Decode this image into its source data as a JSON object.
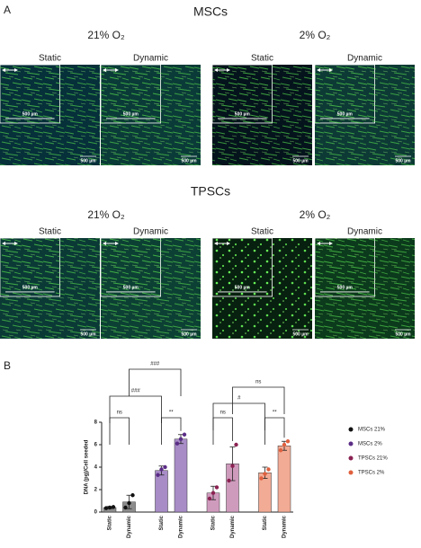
{
  "panel_a": {
    "label": "A",
    "scale_bar": "500 µm",
    "groups": [
      {
        "title": "MSCs",
        "conditions": [
          {
            "title": "21% O₂",
            "images": [
              "Static",
              "Dynamic"
            ]
          },
          {
            "title": "2% O₂",
            "images": [
              "Static",
              "Dynamic"
            ]
          }
        ]
      },
      {
        "title": "TPSCs",
        "conditions": [
          {
            "title": "21% O₂",
            "images": [
              "Static",
              "Dynamic"
            ]
          },
          {
            "title": "2% O₂",
            "images": [
              "Static",
              "Dynamic"
            ]
          }
        ]
      }
    ]
  },
  "panel_b": {
    "label": "B"
  },
  "chart_data": {
    "type": "bar",
    "ylabel": "DNA (pg)/Cell seeded",
    "categories": [
      "Static",
      "Dynamic"
    ],
    "series": [
      {
        "name": "MSCs 21%",
        "color": "#111111",
        "bar_color": "#8c8c8c",
        "values": [
          0.4,
          0.9
        ],
        "errors": [
          0.1,
          0.6
        ],
        "points": [
          [
            0.35,
            0.4,
            0.45
          ],
          [
            0.4,
            0.8,
            1.5
          ]
        ]
      },
      {
        "name": "MSCs 2%",
        "color": "#5b2d86",
        "bar_color": "#a78cc6",
        "values": [
          3.7,
          6.5
        ],
        "errors": [
          0.4,
          0.4
        ],
        "points": [
          [
            3.3,
            3.8,
            4.0
          ],
          [
            6.1,
            6.5,
            6.9
          ]
        ]
      },
      {
        "name": "TPSCs 21%",
        "color": "#8b2252",
        "bar_color": "#cf9bbd",
        "values": [
          1.7,
          4.3
        ],
        "errors": [
          0.6,
          1.5
        ],
        "points": [
          [
            1.2,
            1.7,
            2.2
          ],
          [
            2.8,
            4.1,
            6.0
          ]
        ]
      },
      {
        "name": "TPSCs 2%",
        "color": "#e0603e",
        "bar_color": "#f2ab95",
        "values": [
          3.5,
          5.9
        ],
        "errors": [
          0.5,
          0.4
        ],
        "points": [
          [
            3.0,
            3.4,
            3.8
          ],
          [
            5.5,
            6.0,
            6.3
          ]
        ]
      }
    ],
    "comparisons": [
      {
        "from": 0,
        "to": 1,
        "label": "ns"
      },
      {
        "from": 2,
        "to": 3,
        "label": "**"
      },
      {
        "from": 0,
        "to": 2,
        "label": "###"
      },
      {
        "from": 1,
        "to": 3,
        "label": "###"
      },
      {
        "from": 4,
        "to": 5,
        "label": "ns"
      },
      {
        "from": 6,
        "to": 7,
        "label": "**"
      },
      {
        "from": 4,
        "to": 6,
        "label": "#"
      },
      {
        "from": 5,
        "to": 7,
        "label": "ns"
      }
    ],
    "ylim": [
      0,
      8
    ],
    "yticks": [
      0,
      2,
      4,
      6,
      8
    ],
    "legend": "right"
  }
}
